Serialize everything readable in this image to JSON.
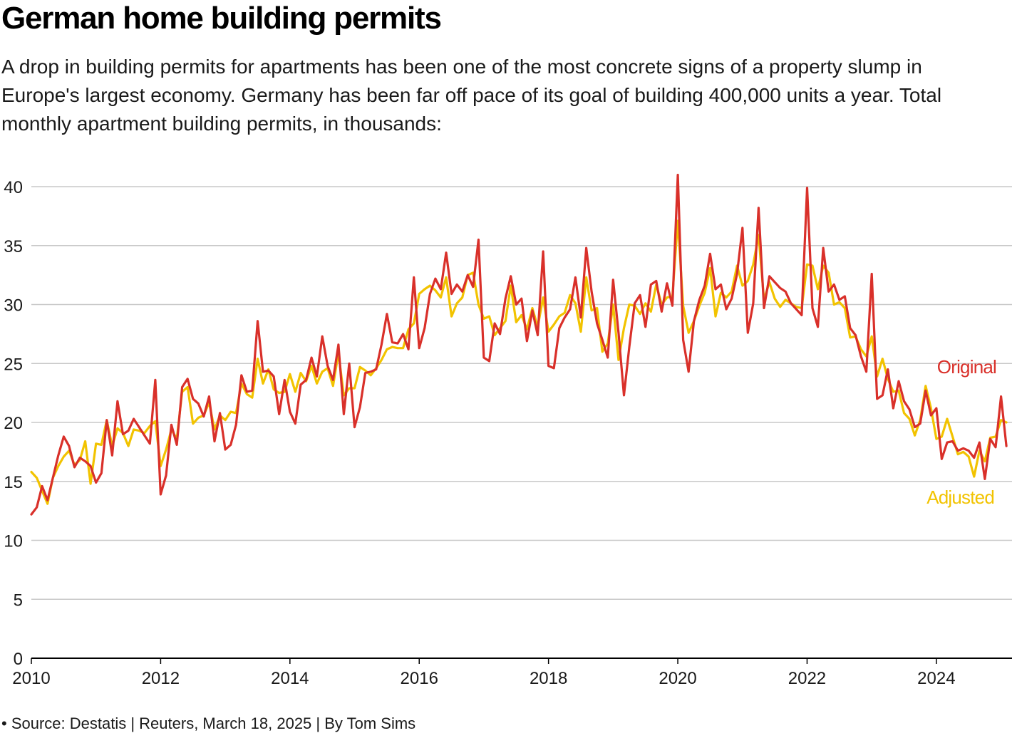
{
  "header": {
    "title": "German home building permits",
    "subtitle": "A drop in building permits for apartments has been one of the most concrete signs of a property slump in Europe's largest economy. Germany has been far off pace of its goal of building 400,000 units a year. Total monthly apartment building permits, in thousands:"
  },
  "footer": {
    "source": "• Source: Destatis | Reuters, March 18, 2025 | By Tom Sims"
  },
  "colors": {
    "original": "#d9302a",
    "adjusted": "#f2c300",
    "grid": "#c8c8c8",
    "axis": "#000000"
  },
  "chart_data": {
    "type": "line",
    "title": "German home building permits",
    "ylabel": "Total monthly apartment building permits, in thousands",
    "xlabel": "",
    "ylim": [
      0,
      42
    ],
    "xlim": [
      2010.0,
      2025.17
    ],
    "yticks": [
      0,
      5,
      10,
      15,
      20,
      25,
      30,
      35,
      40
    ],
    "xticks": [
      2010,
      2012,
      2014,
      2016,
      2018,
      2020,
      2022,
      2024
    ],
    "grid": true,
    "start": "2010-01",
    "series": [
      {
        "name": "Original",
        "color": "#d9302a",
        "label_text": "Original",
        "values": [
          12.2,
          12.8,
          14.6,
          13.4,
          15.3,
          17.2,
          18.8,
          18.0,
          16.2,
          17.0,
          16.7,
          16.3,
          14.9,
          15.7,
          20.2,
          17.2,
          21.8,
          19.0,
          19.3,
          20.3,
          19.6,
          18.9,
          18.2,
          23.6,
          13.9,
          15.5,
          19.8,
          18.1,
          23.0,
          23.7,
          22.0,
          21.6,
          20.5,
          22.2,
          18.4,
          20.8,
          17.7,
          18.1,
          19.8,
          24.0,
          22.6,
          22.7,
          28.6,
          24.3,
          24.4,
          23.9,
          20.7,
          23.6,
          20.9,
          19.9,
          23.2,
          23.6,
          25.5,
          23.9,
          27.3,
          24.8,
          23.6,
          26.6,
          20.7,
          25.0,
          19.6,
          21.3,
          24.2,
          24.3,
          24.5,
          26.6,
          29.2,
          26.8,
          26.7,
          27.5,
          26.2,
          32.3,
          26.3,
          28.0,
          30.9,
          32.2,
          31.3,
          34.4,
          30.9,
          31.7,
          31.1,
          32.5,
          31.5,
          35.5,
          25.5,
          25.2,
          28.4,
          27.5,
          30.5,
          32.4,
          30.0,
          30.5,
          26.9,
          29.5,
          27.4,
          34.5,
          24.8,
          24.6,
          28.0,
          28.9,
          29.6,
          32.3,
          28.9,
          34.8,
          31.1,
          28.4,
          27.0,
          25.5,
          32.1,
          27.6,
          22.3,
          26.4,
          30.1,
          30.8,
          28.1,
          31.7,
          32.0,
          29.4,
          31.8,
          29.9,
          41.0,
          27.0,
          24.3,
          28.6,
          30.4,
          31.6,
          34.3,
          31.3,
          31.7,
          29.6,
          30.5,
          32.6,
          36.5,
          27.6,
          30.1,
          38.2,
          29.7,
          32.4,
          31.9,
          31.4,
          31.1,
          30.1,
          29.6,
          29.1,
          39.9,
          29.7,
          28.1,
          34.8,
          31.1,
          31.7,
          30.4,
          30.7,
          28.0,
          27.4,
          25.6,
          24.3,
          32.6,
          22.0,
          22.3,
          24.5,
          21.2,
          23.5,
          21.8,
          21.1,
          19.6,
          19.9,
          22.7,
          20.6,
          21.2,
          16.9,
          18.3,
          18.4,
          17.6,
          17.8,
          17.6,
          17.0,
          18.3,
          15.2,
          18.6,
          17.9,
          22.2,
          18.0
        ]
      },
      {
        "name": "Adjusted",
        "color": "#f2c300",
        "label_text": "Adjusted",
        "values": [
          15.8,
          15.3,
          14.2,
          13.1,
          15.3,
          16.3,
          17.1,
          17.6,
          16.4,
          16.8,
          18.4,
          14.8,
          18.2,
          18.1,
          20.2,
          18.0,
          19.5,
          19.1,
          18.0,
          19.4,
          19.3,
          19.1,
          19.7,
          20.1,
          16.3,
          17.7,
          19.4,
          18.6,
          22.6,
          23.0,
          19.9,
          20.4,
          20.6,
          21.7,
          19.4,
          20.6,
          20.2,
          20.9,
          20.8,
          23.3,
          22.4,
          22.1,
          25.4,
          23.3,
          24.5,
          22.8,
          22.5,
          22.6,
          24.1,
          22.6,
          24.2,
          23.5,
          24.8,
          23.3,
          24.3,
          24.6,
          23.1,
          25.9,
          22.3,
          22.9,
          22.9,
          24.7,
          24.4,
          24.0,
          24.6,
          25.3,
          26.2,
          26.4,
          26.3,
          26.3,
          27.9,
          28.4,
          30.9,
          31.3,
          31.6,
          31.2,
          30.6,
          32.3,
          29.0,
          30.1,
          30.6,
          32.5,
          32.7,
          30.0,
          28.8,
          29.0,
          27.4,
          28.0,
          28.6,
          31.6,
          28.5,
          29.1,
          27.9,
          29.7,
          28.1,
          30.6,
          27.7,
          28.3,
          29.0,
          29.3,
          30.8,
          30.1,
          27.7,
          32.3,
          29.5,
          29.7,
          26.0,
          26.7,
          30.0,
          25.3,
          28.0,
          30.0,
          29.9,
          29.2,
          30.1,
          29.4,
          31.7,
          30.0,
          30.6,
          30.7,
          37.1,
          29.9,
          27.6,
          28.6,
          29.9,
          31.0,
          33.1,
          29.0,
          31.0,
          30.6,
          31.1,
          33.3,
          31.6,
          32.0,
          33.4,
          35.9,
          30.4,
          31.9,
          30.5,
          29.8,
          30.4,
          30.1,
          29.8,
          29.7,
          33.4,
          33.3,
          31.3,
          33.3,
          32.7,
          30.0,
          30.2,
          29.7,
          27.2,
          27.3,
          26.2,
          25.6,
          27.3,
          23.9,
          25.4,
          23.7,
          22.6,
          22.7,
          20.8,
          20.3,
          18.9,
          20.2,
          23.1,
          21.2,
          18.6,
          18.8,
          20.3,
          18.8,
          17.3,
          17.5,
          17.1,
          15.4,
          17.6,
          16.7,
          18.7,
          18.8,
          20.2,
          20.0
        ]
      }
    ]
  }
}
